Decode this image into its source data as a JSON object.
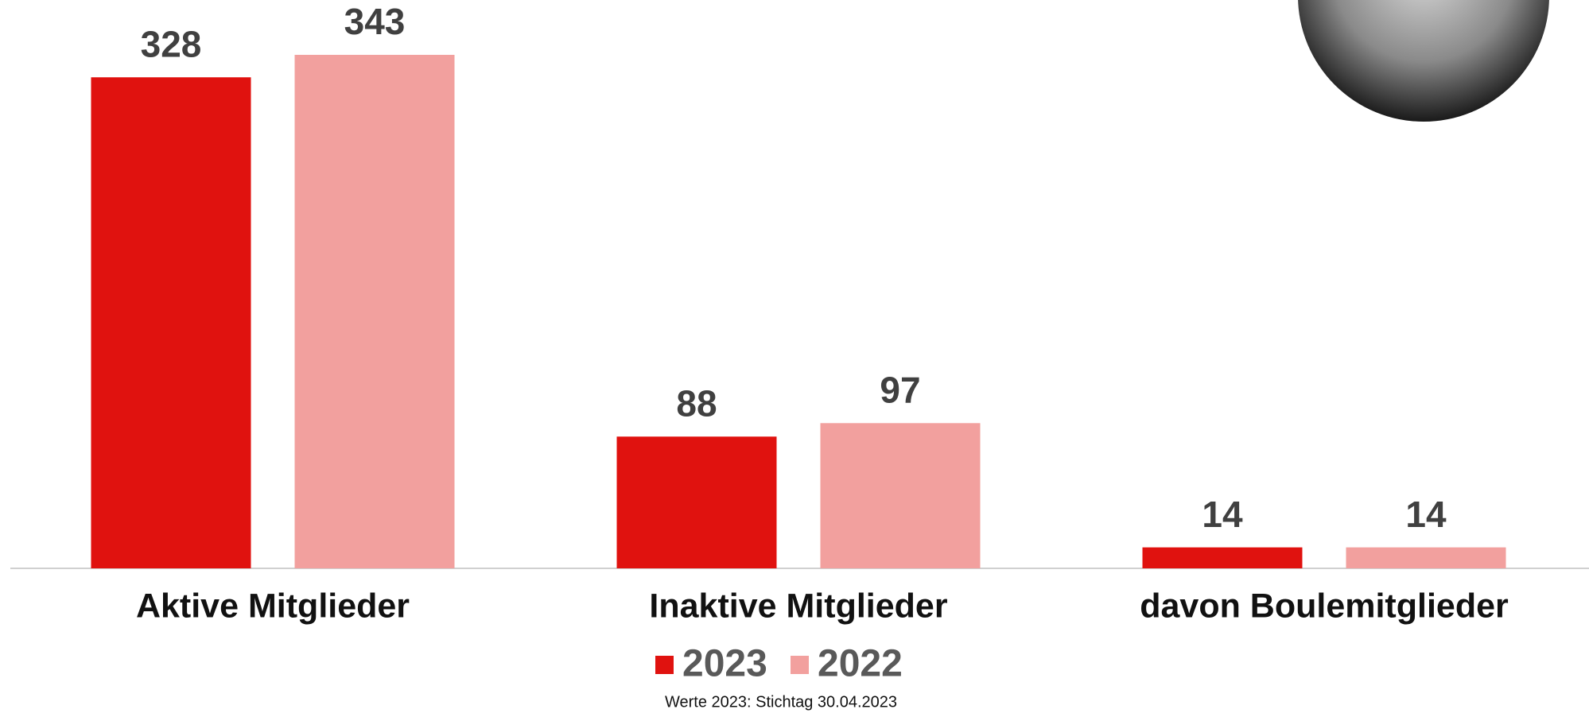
{
  "chart_data": {
    "type": "bar",
    "categories": [
      "Aktive Mitglieder",
      "Inaktive Mitglieder",
      "davon Boulemitglieder"
    ],
    "series": [
      {
        "name": "2023",
        "color": "#e0120f",
        "values": [
          328,
          88,
          14
        ]
      },
      {
        "name": "2022",
        "color": "#f2a09e",
        "values": [
          343,
          97,
          14
        ]
      }
    ],
    "note": "Werte 2023: Stichtag 30.04.2023"
  }
}
